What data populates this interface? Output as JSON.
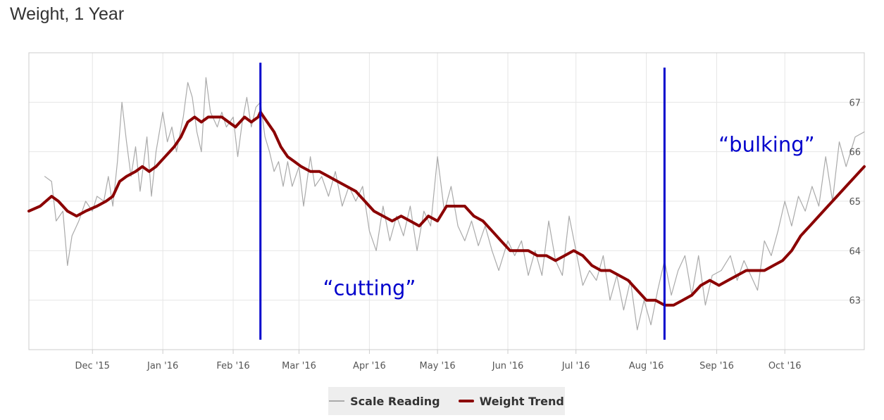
{
  "title": "Weight, 1 Year",
  "chart_data": {
    "type": "line",
    "title": "Weight, 1 Year",
    "xlabel": "",
    "ylabel": "",
    "x_range": [
      "2015-11-03",
      "2016-11-05"
    ],
    "ylim": [
      62.0,
      68.0
    ],
    "grid": true,
    "legend_position": "bottom-center",
    "x_ticks": [
      {
        "date": "2015-12-01",
        "label": "Dec '15"
      },
      {
        "date": "2016-01-01",
        "label": "Jan '16"
      },
      {
        "date": "2016-02-01",
        "label": "Feb '16"
      },
      {
        "date": "2016-03-01",
        "label": "Mar '16"
      },
      {
        "date": "2016-04-01",
        "label": "Apr '16"
      },
      {
        "date": "2016-05-01",
        "label": "May '16"
      },
      {
        "date": "2016-06-01",
        "label": "Jun '16"
      },
      {
        "date": "2016-07-01",
        "label": "Jul '16"
      },
      {
        "date": "2016-08-01",
        "label": "Aug '16"
      },
      {
        "date": "2016-09-01",
        "label": "Sep '16"
      },
      {
        "date": "2016-10-01",
        "label": "Oct '16"
      }
    ],
    "y_ticks": [
      {
        "value": 63,
        "label": "63"
      },
      {
        "value": 64,
        "label": "64"
      },
      {
        "value": 65,
        "label": "65"
      },
      {
        "value": 66,
        "label": "66"
      },
      {
        "value": 67,
        "label": "67"
      }
    ],
    "series": [
      {
        "name": "Scale Reading",
        "color": "#aaaaaa",
        "points": [
          [
            "2015-11-10",
            65.5
          ],
          [
            "2015-11-13",
            65.4
          ],
          [
            "2015-11-15",
            64.6
          ],
          [
            "2015-11-18",
            64.8
          ],
          [
            "2015-11-20",
            63.7
          ],
          [
            "2015-11-22",
            64.3
          ],
          [
            "2015-11-25",
            64.6
          ],
          [
            "2015-11-28",
            65.0
          ],
          [
            "2015-12-01",
            64.8
          ],
          [
            "2015-12-03",
            65.1
          ],
          [
            "2015-12-06",
            65.0
          ],
          [
            "2015-12-08",
            65.5
          ],
          [
            "2015-12-10",
            64.9
          ],
          [
            "2015-12-12",
            65.8
          ],
          [
            "2015-12-14",
            67.0
          ],
          [
            "2015-12-16",
            66.2
          ],
          [
            "2015-12-18",
            65.5
          ],
          [
            "2015-12-20",
            66.1
          ],
          [
            "2015-12-22",
            65.2
          ],
          [
            "2015-12-25",
            66.3
          ],
          [
            "2015-12-27",
            65.1
          ],
          [
            "2015-12-29",
            66.0
          ],
          [
            "2016-01-01",
            66.8
          ],
          [
            "2016-01-03",
            66.2
          ],
          [
            "2016-01-05",
            66.5
          ],
          [
            "2016-01-07",
            66.0
          ],
          [
            "2016-01-10",
            66.7
          ],
          [
            "2016-01-12",
            67.4
          ],
          [
            "2016-01-14",
            67.1
          ],
          [
            "2016-01-16",
            66.4
          ],
          [
            "2016-01-18",
            66.0
          ],
          [
            "2016-01-20",
            67.5
          ],
          [
            "2016-01-22",
            66.8
          ],
          [
            "2016-01-25",
            66.5
          ],
          [
            "2016-01-27",
            66.8
          ],
          [
            "2016-01-29",
            66.5
          ],
          [
            "2016-02-01",
            66.7
          ],
          [
            "2016-02-03",
            65.9
          ],
          [
            "2016-02-05",
            66.6
          ],
          [
            "2016-02-07",
            67.1
          ],
          [
            "2016-02-09",
            66.5
          ],
          [
            "2016-02-11",
            66.9
          ],
          [
            "2016-02-13",
            67.0
          ],
          [
            "2016-02-15",
            66.3
          ],
          [
            "2016-02-17",
            66.0
          ],
          [
            "2016-02-19",
            65.6
          ],
          [
            "2016-02-21",
            65.8
          ],
          [
            "2016-02-23",
            65.3
          ],
          [
            "2016-02-25",
            65.8
          ],
          [
            "2016-02-27",
            65.3
          ],
          [
            "2016-03-01",
            65.7
          ],
          [
            "2016-03-03",
            64.9
          ],
          [
            "2016-03-06",
            65.9
          ],
          [
            "2016-03-08",
            65.3
          ],
          [
            "2016-03-11",
            65.5
          ],
          [
            "2016-03-14",
            65.1
          ],
          [
            "2016-03-17",
            65.6
          ],
          [
            "2016-03-20",
            64.9
          ],
          [
            "2016-03-23",
            65.3
          ],
          [
            "2016-03-26",
            65.0
          ],
          [
            "2016-03-29",
            65.3
          ],
          [
            "2016-04-01",
            64.4
          ],
          [
            "2016-04-04",
            64.0
          ],
          [
            "2016-04-07",
            64.9
          ],
          [
            "2016-04-10",
            64.2
          ],
          [
            "2016-04-13",
            64.7
          ],
          [
            "2016-04-16",
            64.3
          ],
          [
            "2016-04-19",
            64.9
          ],
          [
            "2016-04-22",
            64.0
          ],
          [
            "2016-04-25",
            64.8
          ],
          [
            "2016-04-28",
            64.5
          ],
          [
            "2016-05-01",
            65.9
          ],
          [
            "2016-05-04",
            64.8
          ],
          [
            "2016-05-07",
            65.3
          ],
          [
            "2016-05-10",
            64.5
          ],
          [
            "2016-05-13",
            64.2
          ],
          [
            "2016-05-16",
            64.6
          ],
          [
            "2016-05-19",
            64.1
          ],
          [
            "2016-05-22",
            64.5
          ],
          [
            "2016-05-25",
            64.0
          ],
          [
            "2016-05-28",
            63.6
          ],
          [
            "2016-06-01",
            64.2
          ],
          [
            "2016-06-04",
            63.9
          ],
          [
            "2016-06-07",
            64.2
          ],
          [
            "2016-06-10",
            63.5
          ],
          [
            "2016-06-13",
            64.0
          ],
          [
            "2016-06-16",
            63.5
          ],
          [
            "2016-06-19",
            64.6
          ],
          [
            "2016-06-22",
            63.8
          ],
          [
            "2016-06-25",
            63.5
          ],
          [
            "2016-06-28",
            64.7
          ],
          [
            "2016-07-01",
            64.0
          ],
          [
            "2016-07-04",
            63.3
          ],
          [
            "2016-07-07",
            63.6
          ],
          [
            "2016-07-10",
            63.4
          ],
          [
            "2016-07-13",
            63.9
          ],
          [
            "2016-07-16",
            63.0
          ],
          [
            "2016-07-19",
            63.5
          ],
          [
            "2016-07-22",
            62.8
          ],
          [
            "2016-07-25",
            63.4
          ],
          [
            "2016-07-28",
            62.4
          ],
          [
            "2016-07-31",
            63.0
          ],
          [
            "2016-08-03",
            62.5
          ],
          [
            "2016-08-06",
            63.2
          ],
          [
            "2016-08-09",
            63.8
          ],
          [
            "2016-08-12",
            63.1
          ],
          [
            "2016-08-15",
            63.6
          ],
          [
            "2016-08-18",
            63.9
          ],
          [
            "2016-08-21",
            63.1
          ],
          [
            "2016-08-24",
            63.9
          ],
          [
            "2016-08-27",
            62.9
          ],
          [
            "2016-08-30",
            63.5
          ],
          [
            "2016-09-03",
            63.6
          ],
          [
            "2016-09-07",
            63.9
          ],
          [
            "2016-09-10",
            63.4
          ],
          [
            "2016-09-13",
            63.8
          ],
          [
            "2016-09-16",
            63.5
          ],
          [
            "2016-09-19",
            63.2
          ],
          [
            "2016-09-22",
            64.2
          ],
          [
            "2016-09-25",
            63.9
          ],
          [
            "2016-09-28",
            64.4
          ],
          [
            "2016-10-01",
            65.0
          ],
          [
            "2016-10-04",
            64.5
          ],
          [
            "2016-10-07",
            65.1
          ],
          [
            "2016-10-10",
            64.8
          ],
          [
            "2016-10-13",
            65.3
          ],
          [
            "2016-10-16",
            64.9
          ],
          [
            "2016-10-19",
            65.9
          ],
          [
            "2016-10-22",
            65.0
          ],
          [
            "2016-10-25",
            66.2
          ],
          [
            "2016-10-28",
            65.7
          ],
          [
            "2016-11-01",
            66.3
          ],
          [
            "2016-11-05",
            66.4
          ]
        ]
      },
      {
        "name": "Weight Trend",
        "color": "#8b0000",
        "points": [
          [
            "2015-11-03",
            64.8
          ],
          [
            "2015-11-08",
            64.9
          ],
          [
            "2015-11-13",
            65.1
          ],
          [
            "2015-11-16",
            65.0
          ],
          [
            "2015-11-20",
            64.8
          ],
          [
            "2015-11-24",
            64.7
          ],
          [
            "2015-11-28",
            64.8
          ],
          [
            "2015-12-03",
            64.9
          ],
          [
            "2015-12-07",
            65.0
          ],
          [
            "2015-12-10",
            65.1
          ],
          [
            "2015-12-13",
            65.4
          ],
          [
            "2015-12-16",
            65.5
          ],
          [
            "2015-12-20",
            65.6
          ],
          [
            "2015-12-23",
            65.7
          ],
          [
            "2015-12-26",
            65.6
          ],
          [
            "2015-12-29",
            65.7
          ],
          [
            "2016-01-02",
            65.9
          ],
          [
            "2016-01-06",
            66.1
          ],
          [
            "2016-01-09",
            66.3
          ],
          [
            "2016-01-12",
            66.6
          ],
          [
            "2016-01-15",
            66.7
          ],
          [
            "2016-01-18",
            66.6
          ],
          [
            "2016-01-21",
            66.7
          ],
          [
            "2016-01-24",
            66.7
          ],
          [
            "2016-01-27",
            66.7
          ],
          [
            "2016-01-30",
            66.6
          ],
          [
            "2016-02-02",
            66.5
          ],
          [
            "2016-02-06",
            66.7
          ],
          [
            "2016-02-09",
            66.6
          ],
          [
            "2016-02-12",
            66.7
          ],
          [
            "2016-02-13",
            66.8
          ],
          [
            "2016-02-16",
            66.6
          ],
          [
            "2016-02-19",
            66.4
          ],
          [
            "2016-02-22",
            66.1
          ],
          [
            "2016-02-25",
            65.9
          ],
          [
            "2016-02-28",
            65.8
          ],
          [
            "2016-03-02",
            65.7
          ],
          [
            "2016-03-06",
            65.6
          ],
          [
            "2016-03-10",
            65.6
          ],
          [
            "2016-03-14",
            65.5
          ],
          [
            "2016-03-18",
            65.4
          ],
          [
            "2016-03-22",
            65.3
          ],
          [
            "2016-03-26",
            65.2
          ],
          [
            "2016-03-30",
            65.0
          ],
          [
            "2016-04-03",
            64.8
          ],
          [
            "2016-04-07",
            64.7
          ],
          [
            "2016-04-11",
            64.6
          ],
          [
            "2016-04-15",
            64.7
          ],
          [
            "2016-04-19",
            64.6
          ],
          [
            "2016-04-23",
            64.5
          ],
          [
            "2016-04-27",
            64.7
          ],
          [
            "2016-05-01",
            64.6
          ],
          [
            "2016-05-05",
            64.9
          ],
          [
            "2016-05-09",
            64.9
          ],
          [
            "2016-05-13",
            64.9
          ],
          [
            "2016-05-17",
            64.7
          ],
          [
            "2016-05-21",
            64.6
          ],
          [
            "2016-05-25",
            64.4
          ],
          [
            "2016-05-29",
            64.2
          ],
          [
            "2016-06-02",
            64.0
          ],
          [
            "2016-06-06",
            64.0
          ],
          [
            "2016-06-10",
            64.0
          ],
          [
            "2016-06-14",
            63.9
          ],
          [
            "2016-06-18",
            63.9
          ],
          [
            "2016-06-22",
            63.8
          ],
          [
            "2016-06-26",
            63.9
          ],
          [
            "2016-06-30",
            64.0
          ],
          [
            "2016-07-04",
            63.9
          ],
          [
            "2016-07-08",
            63.7
          ],
          [
            "2016-07-12",
            63.6
          ],
          [
            "2016-07-16",
            63.6
          ],
          [
            "2016-07-20",
            63.5
          ],
          [
            "2016-07-24",
            63.4
          ],
          [
            "2016-07-28",
            63.2
          ],
          [
            "2016-08-01",
            63.0
          ],
          [
            "2016-08-05",
            63.0
          ],
          [
            "2016-08-09",
            62.9
          ],
          [
            "2016-08-13",
            62.9
          ],
          [
            "2016-08-17",
            63.0
          ],
          [
            "2016-08-21",
            63.1
          ],
          [
            "2016-08-25",
            63.3
          ],
          [
            "2016-08-29",
            63.4
          ],
          [
            "2016-09-02",
            63.3
          ],
          [
            "2016-09-06",
            63.4
          ],
          [
            "2016-09-10",
            63.5
          ],
          [
            "2016-09-14",
            63.6
          ],
          [
            "2016-09-18",
            63.6
          ],
          [
            "2016-09-22",
            63.6
          ],
          [
            "2016-09-26",
            63.7
          ],
          [
            "2016-09-30",
            63.8
          ],
          [
            "2016-10-04",
            64.0
          ],
          [
            "2016-10-08",
            64.3
          ],
          [
            "2016-10-12",
            64.5
          ],
          [
            "2016-10-16",
            64.7
          ],
          [
            "2016-10-20",
            64.9
          ],
          [
            "2016-10-24",
            65.1
          ],
          [
            "2016-10-28",
            65.3
          ],
          [
            "2016-11-01",
            65.5
          ],
          [
            "2016-11-05",
            65.7
          ]
        ]
      }
    ],
    "annotations": [
      {
        "type": "vertical-line",
        "date": "2016-02-13",
        "y_from": 62.2,
        "y_to": 67.8,
        "color": "#0000cc"
      },
      {
        "type": "vertical-line",
        "date": "2016-08-09",
        "y_from": 62.2,
        "y_to": 67.7,
        "color": "#0000cc"
      },
      {
        "type": "text",
        "text": "“cutting”",
        "date": "2016-04-01",
        "value": 63.1,
        "color": "#0000cc"
      },
      {
        "type": "text",
        "text": "“bulking”",
        "date": "2016-09-23",
        "value": 66.0,
        "color": "#0000cc"
      }
    ]
  },
  "legend": {
    "items": [
      {
        "label": "Scale Reading",
        "color": "#aaaaaa"
      },
      {
        "label": "Weight Trend",
        "color": "#8b0000"
      }
    ]
  }
}
